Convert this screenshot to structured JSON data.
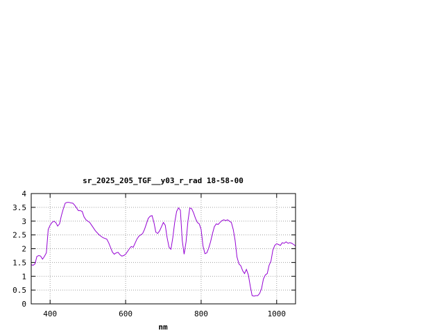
{
  "chart_data": {
    "type": "line",
    "title": "sr_2025_205_TGF__y03_r_rad 18-58-00",
    "xlabel": "nm",
    "ylabel": "",
    "xlim": [
      350,
      1050
    ],
    "ylim": [
      0,
      4
    ],
    "xticks": [
      400,
      600,
      800,
      1000
    ],
    "yticks": [
      0,
      0.5,
      1,
      1.5,
      2,
      2.5,
      3,
      3.5,
      4
    ],
    "xtick_labels": [
      "400",
      "600",
      "800",
      "1000"
    ],
    "ytick_labels": [
      "0",
      "0.5",
      "1",
      "1.5",
      "2",
      "2.5",
      "3",
      "3.5",
      "4"
    ],
    "grid": true,
    "line_color": "#9400d3",
    "series": [
      {
        "name": "",
        "x": [
          350,
          355,
          360,
          365,
          370,
          375,
          380,
          385,
          390,
          395,
          400,
          405,
          410,
          415,
          420,
          425,
          430,
          435,
          440,
          445,
          450,
          455,
          460,
          465,
          470,
          475,
          480,
          485,
          490,
          495,
          500,
          505,
          510,
          520,
          530,
          540,
          550,
          555,
          560,
          565,
          570,
          575,
          580,
          585,
          590,
          595,
          600,
          605,
          610,
          615,
          620,
          625,
          630,
          635,
          640,
          645,
          650,
          655,
          660,
          665,
          670,
          675,
          680,
          685,
          690,
          695,
          700,
          705,
          710,
          715,
          720,
          725,
          730,
          735,
          740,
          745,
          750,
          755,
          760,
          765,
          770,
          775,
          780,
          785,
          790,
          795,
          800,
          805,
          810,
          815,
          820,
          825,
          830,
          835,
          840,
          845,
          850,
          855,
          860,
          865,
          870,
          875,
          880,
          885,
          890,
          895,
          900,
          905,
          910,
          915,
          920,
          925,
          930,
          935,
          940,
          945,
          950,
          955,
          960,
          965,
          970,
          975,
          980,
          985,
          990,
          995,
          1000,
          1005,
          1010,
          1015,
          1020,
          1025,
          1030,
          1035,
          1040,
          1045,
          1050
        ],
        "y": [
          1.42,
          1.4,
          1.45,
          1.72,
          1.75,
          1.73,
          1.62,
          1.72,
          1.85,
          2.7,
          2.85,
          2.95,
          3.0,
          2.95,
          2.82,
          2.9,
          3.2,
          3.45,
          3.65,
          3.68,
          3.68,
          3.66,
          3.65,
          3.58,
          3.48,
          3.38,
          3.38,
          3.35,
          3.15,
          3.05,
          3.0,
          2.95,
          2.85,
          2.65,
          2.5,
          2.4,
          2.35,
          2.22,
          2.05,
          1.88,
          1.8,
          1.85,
          1.87,
          1.78,
          1.73,
          1.75,
          1.8,
          1.9,
          2.0,
          2.08,
          2.05,
          2.2,
          2.35,
          2.45,
          2.5,
          2.55,
          2.7,
          2.9,
          3.1,
          3.18,
          3.2,
          2.95,
          2.6,
          2.55,
          2.65,
          2.8,
          2.95,
          2.85,
          2.4,
          2.05,
          1.98,
          2.4,
          2.95,
          3.35,
          3.48,
          3.4,
          2.3,
          1.8,
          2.25,
          3.0,
          3.48,
          3.45,
          3.3,
          3.1,
          2.95,
          2.9,
          2.7,
          2.1,
          1.82,
          1.85,
          2.02,
          2.25,
          2.55,
          2.8,
          2.9,
          2.88,
          2.95,
          3.02,
          3.05,
          3.02,
          3.05,
          3.0,
          2.95,
          2.7,
          2.3,
          1.7,
          1.45,
          1.38,
          1.2,
          1.1,
          1.25,
          1.05,
          0.65,
          0.3,
          0.28,
          0.3,
          0.3,
          0.38,
          0.55,
          0.9,
          1.05,
          1.1,
          1.4,
          1.55,
          1.95,
          2.12,
          2.18,
          2.15,
          2.12,
          2.22,
          2.2,
          2.25,
          2.2,
          2.22,
          2.2,
          2.15,
          2.1
        ]
      }
    ]
  }
}
